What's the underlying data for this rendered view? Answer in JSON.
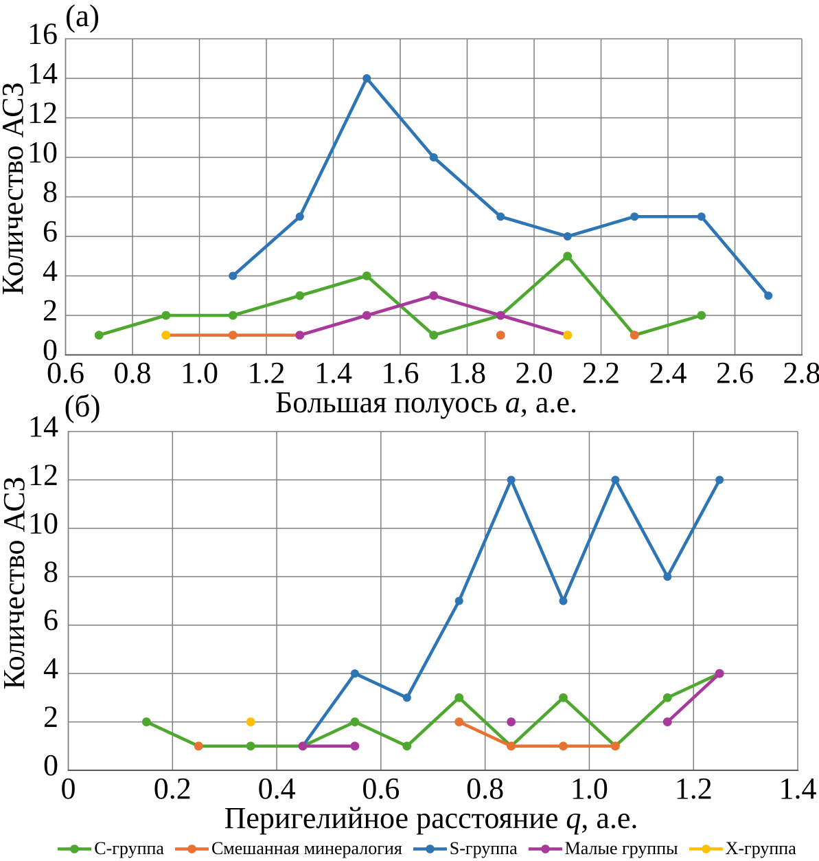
{
  "figure": {
    "background": "#ffffff",
    "text_color": "#000000",
    "grid_color": "#7f7f7f",
    "axis_color": "#595959"
  },
  "legend": {
    "position": "bottom",
    "items": [
      {
        "label": "C-группа",
        "color": "#4EA72E"
      },
      {
        "label": "Смешанная минералогия",
        "color": "#E97132"
      },
      {
        "label": "S-группа",
        "color": "#2E75B6"
      },
      {
        "label": "Малые группы",
        "color": "#A8399B"
      },
      {
        "label": "X-группа",
        "color": "#FFC000"
      }
    ]
  },
  "chart_data": [
    {
      "type": "line",
      "panel_label": "(a)",
      "xlabel": "Большая полуось a, а.е.",
      "xlabel_parts": [
        {
          "text": "Большая полуось "
        },
        {
          "text": "a",
          "italic": true
        },
        {
          "text": ", а.е."
        }
      ],
      "ylabel": "Количество АСЗ",
      "xlim": [
        0.6,
        2.8
      ],
      "ylim": [
        0,
        16
      ],
      "xticks": [
        {
          "v": 0.6,
          "label": "0.6"
        },
        {
          "v": 0.8,
          "label": "0.8"
        },
        {
          "v": 1.0,
          "label": "1.0"
        },
        {
          "v": 1.2,
          "label": "1.2"
        },
        {
          "v": 1.4,
          "label": "1.4"
        },
        {
          "v": 1.6,
          "label": "1.6"
        },
        {
          "v": 1.8,
          "label": "1.8"
        },
        {
          "v": 2.0,
          "label": "2.0"
        },
        {
          "v": 2.2,
          "label": "2.2"
        },
        {
          "v": 2.4,
          "label": "2.4"
        },
        {
          "v": 2.6,
          "label": "2.6"
        },
        {
          "v": 2.8,
          "label": "2.8"
        }
      ],
      "yticks": [
        {
          "v": 0,
          "label": "0"
        },
        {
          "v": 2,
          "label": "2"
        },
        {
          "v": 4,
          "label": "4"
        },
        {
          "v": 6,
          "label": "6"
        },
        {
          "v": 8,
          "label": "8"
        },
        {
          "v": 10,
          "label": "10"
        },
        {
          "v": 12,
          "label": "12"
        },
        {
          "v": 14,
          "label": "14"
        },
        {
          "v": 16,
          "label": "16"
        }
      ],
      "grid": true,
      "series": [
        {
          "name": "C-группа",
          "color": "#4EA72E",
          "segments": [
            [
              [
                0.7,
                1
              ],
              [
                0.9,
                2
              ],
              [
                1.1,
                2
              ],
              [
                1.3,
                3
              ],
              [
                1.5,
                4
              ],
              [
                1.7,
                1
              ],
              [
                1.9,
                2
              ],
              [
                2.1,
                5
              ],
              [
                2.3,
                1
              ],
              [
                2.5,
                2
              ]
            ]
          ]
        },
        {
          "name": "Смешанная минералогия",
          "color": "#E97132",
          "segments": [
            [
              [
                0.9,
                1
              ],
              [
                1.1,
                1
              ],
              [
                1.3,
                1
              ]
            ],
            [
              [
                1.9,
                1
              ]
            ],
            [
              [
                2.3,
                1
              ]
            ]
          ]
        },
        {
          "name": "S-группа",
          "color": "#2E75B6",
          "segments": [
            [
              [
                1.1,
                4
              ],
              [
                1.3,
                7
              ],
              [
                1.5,
                14
              ],
              [
                1.7,
                10
              ],
              [
                1.9,
                7
              ],
              [
                2.1,
                6
              ],
              [
                2.3,
                7
              ],
              [
                2.5,
                7
              ],
              [
                2.7,
                3
              ]
            ]
          ]
        },
        {
          "name": "Малые группы",
          "color": "#A8399B",
          "segments": [
            [
              [
                1.3,
                1
              ],
              [
                1.5,
                2
              ],
              [
                1.7,
                3
              ],
              [
                1.9,
                2
              ],
              [
                2.1,
                1
              ]
            ]
          ]
        },
        {
          "name": "X-группа",
          "color": "#FFC000",
          "segments": [
            [
              [
                0.9,
                1
              ]
            ],
            [
              [
                2.1,
                1
              ]
            ]
          ]
        }
      ]
    },
    {
      "type": "line",
      "panel_label": "(б)",
      "xlabel": "Перигелийное расстояние q, а.е.",
      "xlabel_parts": [
        {
          "text": "Перигелийное расстояние "
        },
        {
          "text": "q",
          "italic": true
        },
        {
          "text": ", а.е."
        }
      ],
      "ylabel": "Количество АСЗ",
      "xlim": [
        0,
        1.4
      ],
      "ylim": [
        0,
        14
      ],
      "xticks": [
        {
          "v": 0,
          "label": "0"
        },
        {
          "v": 0.2,
          "label": "0.2"
        },
        {
          "v": 0.4,
          "label": "0.4"
        },
        {
          "v": 0.6,
          "label": "0.6"
        },
        {
          "v": 0.8,
          "label": "0.8"
        },
        {
          "v": 1.0,
          "label": "1.0"
        },
        {
          "v": 1.2,
          "label": "1.2"
        },
        {
          "v": 1.4,
          "label": "1.4"
        }
      ],
      "yticks": [
        {
          "v": 0,
          "label": "0"
        },
        {
          "v": 2,
          "label": "2"
        },
        {
          "v": 4,
          "label": "4"
        },
        {
          "v": 6,
          "label": "6"
        },
        {
          "v": 8,
          "label": "8"
        },
        {
          "v": 10,
          "label": "10"
        },
        {
          "v": 12,
          "label": "12"
        },
        {
          "v": 14,
          "label": "14"
        }
      ],
      "grid": true,
      "series": [
        {
          "name": "C-группа",
          "color": "#4EA72E",
          "segments": [
            [
              [
                0.15,
                2
              ],
              [
                0.25,
                1
              ],
              [
                0.35,
                1
              ],
              [
                0.45,
                1
              ],
              [
                0.55,
                2
              ],
              [
                0.65,
                1
              ],
              [
                0.75,
                3
              ],
              [
                0.85,
                1
              ],
              [
                0.95,
                3
              ],
              [
                1.05,
                1
              ],
              [
                1.15,
                3
              ],
              [
                1.25,
                4
              ]
            ]
          ]
        },
        {
          "name": "Смешанная минералогия",
          "color": "#E97132",
          "segments": [
            [
              [
                0.25,
                1
              ]
            ],
            [
              [
                0.75,
                2
              ],
              [
                0.85,
                1
              ],
              [
                0.95,
                1
              ],
              [
                1.05,
                1
              ]
            ]
          ]
        },
        {
          "name": "S-группа",
          "color": "#2E75B6",
          "segments": [
            [
              [
                0.45,
                1
              ],
              [
                0.55,
                4
              ],
              [
                0.65,
                3
              ],
              [
                0.75,
                7
              ],
              [
                0.85,
                12
              ],
              [
                0.95,
                7
              ],
              [
                1.05,
                12
              ],
              [
                1.15,
                8
              ],
              [
                1.25,
                12
              ]
            ]
          ]
        },
        {
          "name": "Малые группы",
          "color": "#A8399B",
          "segments": [
            [
              [
                0.45,
                1
              ],
              [
                0.55,
                1
              ]
            ],
            [
              [
                0.85,
                2
              ]
            ],
            [
              [
                1.15,
                2
              ],
              [
                1.25,
                4
              ]
            ]
          ]
        },
        {
          "name": "X-группа",
          "color": "#FFC000",
          "segments": [
            [
              [
                0.35,
                2
              ]
            ]
          ]
        }
      ]
    }
  ]
}
